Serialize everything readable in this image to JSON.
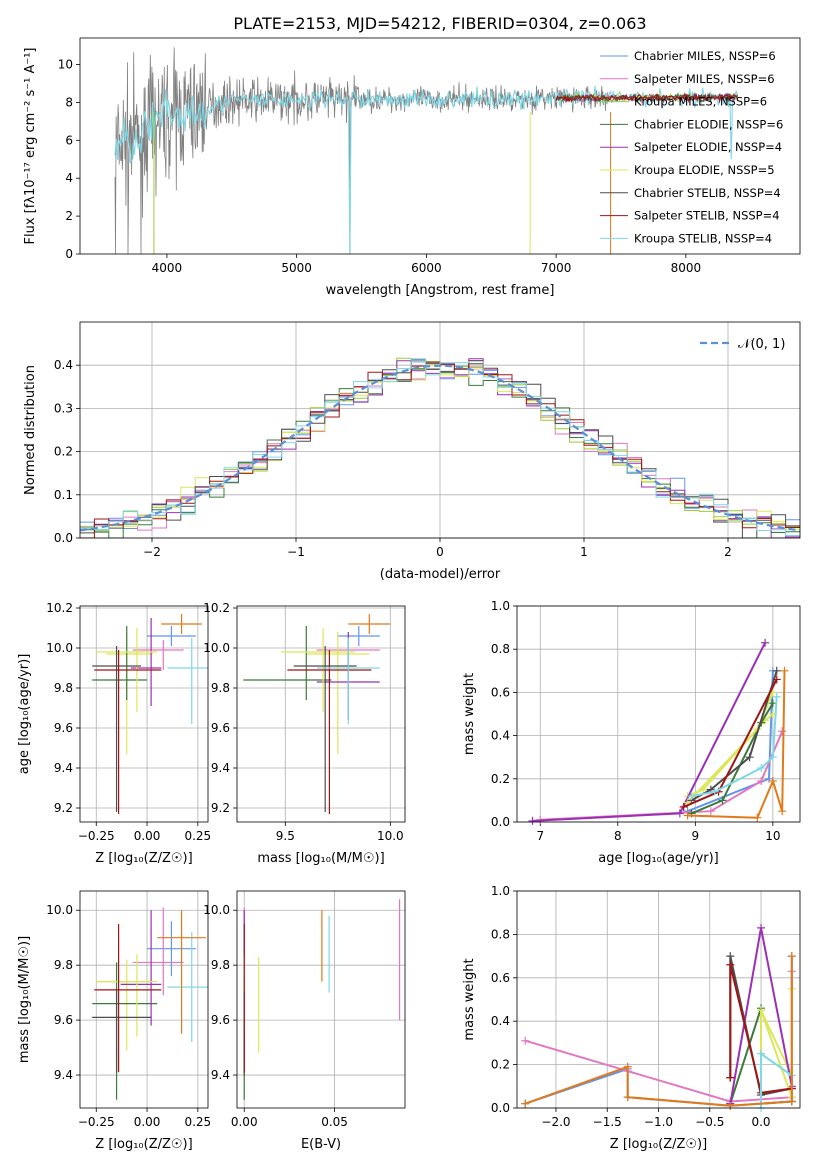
{
  "title": "PLATE=2153, MJD=54212, FIBERID=0304, z=0.063",
  "colors": [
    "#6495ed",
    "#e377c2",
    "#9acd32",
    "#3b7a3b",
    "#9b30b4",
    "#dde65a",
    "#4d4d4d",
    "#a01515",
    "#7fd8e6"
  ],
  "labels": {
    "flux_ylabel": "Flux [fλ10⁻¹⁷ erg cm⁻² s⁻¹ A⁻¹]",
    "wavelength": "wavelength [Angstrom, rest frame]",
    "normed": "Normed distribution",
    "resid": "(data-model)/error",
    "norm_legend": "𝒩(0, 1)",
    "age_label": "age  [log₁₀(age/yr)]",
    "z_label": "Z [log₁₀(Z/Z☉)]",
    "mass_label": "mass [log₁₀(M/M☉)]",
    "mw_label": "mass weight",
    "ebv_label": "E(B-V)"
  },
  "chart_data": [
    {
      "type": "line",
      "title": "PLATE=2153, MJD=54212, FIBERID=0304, z=0.063",
      "xlabel": "wavelength [Angstrom, rest frame]",
      "ylabel": "Flux [fλ10⁻¹⁷ erg cm⁻² s⁻¹ A⁻¹]",
      "xlim": [
        3330,
        8880
      ],
      "ylim": [
        0,
        11.4
      ],
      "xticks": [
        "4000",
        "5000",
        "6000",
        "7000",
        "8000"
      ],
      "yticks": [
        "0",
        "2",
        "4",
        "6",
        "8",
        "10"
      ],
      "legend": "top-right",
      "series": [
        {
          "name": "Chabrier MILES, N_SSP=6"
        },
        {
          "name": "Salpeter MILES, N_SSP=6"
        },
        {
          "name": "Kroupa MILES, N_SSP=6"
        },
        {
          "name": "Chabrier ELODIE, N_SSP=6"
        },
        {
          "name": "Salpeter ELODIE, N_SSP=4"
        },
        {
          "name": "Kroupa ELODIE, N_SSP=5"
        },
        {
          "name": "Chabrier STELIB, N_SSP=4"
        },
        {
          "name": "Salpeter STELIB, N_SSP=4"
        },
        {
          "name": "Kroupa STELIB, N_SSP=4"
        }
      ]
    },
    {
      "type": "area",
      "xlabel": "(data-model)/error",
      "ylabel": "Normed distribution",
      "xlim": [
        -2.5,
        2.5
      ],
      "ylim": [
        0,
        0.5
      ],
      "xticks": [
        "−2",
        "−1",
        "0",
        "1",
        "2"
      ],
      "yticks": [
        "0.0",
        "0.1",
        "0.2",
        "0.3",
        "0.4"
      ],
      "grid": true,
      "legend": "top-right"
    },
    {
      "type": "scatter",
      "xlabel": "Z [log₁₀(Z/Z☉)]",
      "ylabel": "age  [log₁₀(age/yr)]",
      "xlim": [
        -0.33,
        0.3
      ],
      "ylim": [
        9.13,
        10.21
      ],
      "xticks": [
        "−0.25",
        "0.00",
        "0.25"
      ],
      "yticks": [
        "9.2",
        "9.4",
        "9.6",
        "9.8",
        "10.0",
        "10.2"
      ],
      "points": [
        {
          "x": 0.12,
          "y": 10.06,
          "xerr": [
            0.12,
            0.12
          ],
          "yerr": [
            0.05,
            0.05
          ]
        },
        {
          "x": 0.08,
          "y": 9.99,
          "xerr": [
            0.15,
            0.1
          ],
          "yerr": [
            0.1,
            0.05
          ]
        },
        {
          "x": -0.1,
          "y": 9.97,
          "xerr": [
            0.1,
            0.13
          ],
          "yerr": [
            0.5,
            0.11
          ]
        },
        {
          "x": -0.1,
          "y": 9.84,
          "xerr": [
            0.17,
            0.1
          ],
          "yerr": [
            0.1,
            0.27
          ]
        },
        {
          "x": 0.02,
          "y": 9.9,
          "xerr": [
            0.1,
            0.05
          ],
          "yerr": [
            0.19,
            0.25
          ]
        },
        {
          "x": -0.05,
          "y": 9.98,
          "xerr": [
            0.2,
            0.1
          ],
          "yerr": [
            0.3,
            0.12
          ]
        },
        {
          "x": -0.15,
          "y": 9.91,
          "xerr": [
            0.12,
            0.12
          ],
          "yerr": [
            0.73,
            0.1
          ]
        },
        {
          "x": -0.14,
          "y": 9.89,
          "xerr": [
            0.12,
            0.21
          ],
          "yerr": [
            0.72,
            0.1
          ]
        },
        {
          "x": 0.22,
          "y": 9.9,
          "xerr": [
            0.12,
            0.08
          ],
          "yerr": [
            0.28,
            0.15
          ]
        },
        {
          "x": 0.17,
          "y": 10.12,
          "xerr": [
            0.1,
            0.1
          ],
          "yerr": [
            0.05,
            0.05
          ]
        }
      ]
    },
    {
      "type": "scatter",
      "xlabel": "mass [log₁₀(M/M☉)]",
      "ylabel": "",
      "xlim": [
        9.27,
        10.07
      ],
      "ylim": [
        9.13,
        10.21
      ],
      "xticks": [
        "9.5",
        "10.0"
      ],
      "yticks": [
        "9.2",
        "9.4",
        "9.6",
        "9.8",
        "10.0",
        "10.2"
      ],
      "points": [
        {
          "x": 9.85,
          "y": 10.06,
          "xerr": [
            0.1,
            0.1
          ],
          "yerr": [
            0.05,
            0.05
          ]
        },
        {
          "x": 9.8,
          "y": 9.99,
          "xerr": [
            0.15,
            0.15
          ],
          "yerr": [
            0.1,
            0.05
          ]
        },
        {
          "x": 9.75,
          "y": 9.97,
          "xerr": [
            0.15,
            0.15
          ],
          "yerr": [
            0.5,
            0.11
          ]
        },
        {
          "x": 9.6,
          "y": 9.84,
          "xerr": [
            0.3,
            0.12
          ],
          "yerr": [
            0.1,
            0.27
          ]
        },
        {
          "x": 9.8,
          "y": 9.83,
          "xerr": [
            0.15,
            0.15
          ],
          "yerr": [
            0.19,
            0.25
          ]
        },
        {
          "x": 9.68,
          "y": 9.98,
          "xerr": [
            0.2,
            0.15
          ],
          "yerr": [
            0.3,
            0.12
          ]
        },
        {
          "x": 9.69,
          "y": 9.91,
          "xerr": [
            0.15,
            0.15
          ],
          "yerr": [
            0.73,
            0.1
          ]
        },
        {
          "x": 9.71,
          "y": 9.89,
          "xerr": [
            0.2,
            0.2
          ],
          "yerr": [
            0.72,
            0.1
          ]
        },
        {
          "x": 9.8,
          "y": 9.9,
          "xerr": [
            0.15,
            0.15
          ],
          "yerr": [
            0.28,
            0.15
          ]
        },
        {
          "x": 9.9,
          "y": 10.12,
          "xerr": [
            0.1,
            0.1
          ],
          "yerr": [
            0.05,
            0.05
          ]
        }
      ]
    },
    {
      "type": "line",
      "xlabel": "age  [log₁₀(age/yr)]",
      "ylabel": "mass weight",
      "xlim": [
        6.7,
        10.35
      ],
      "ylim": [
        0,
        1
      ],
      "xticks": [
        "7",
        "8",
        "9",
        "10"
      ],
      "yticks": [
        "0.0",
        "0.2",
        "0.4",
        "0.6",
        "0.8",
        "1.0"
      ],
      "grid": true,
      "series": [
        {
          "x": [
            8.9,
            9.95,
            10.0
          ],
          "y": [
            0.05,
            0.2,
            0.7
          ]
        },
        {
          "x": [
            7.0,
            9.2,
            9.85,
            10.12
          ],
          "y": [
            0.01,
            0.05,
            0.19,
            0.42
          ]
        },
        {
          "x": [
            8.9,
            9.1,
            9.9,
            10.0
          ],
          "y": [
            0.12,
            0.15,
            0.47,
            0.5
          ]
        },
        {
          "x": [
            8.95,
            9.35,
            9.85,
            10.0
          ],
          "y": [
            0.04,
            0.1,
            0.46,
            0.55
          ]
        },
        {
          "x": [
            6.9,
            8.8,
            9.9
          ],
          "y": [
            0.005,
            0.04,
            0.83
          ]
        },
        {
          "x": [
            8.9,
            9.8,
            10.0
          ],
          "y": [
            0.09,
            0.43,
            0.6
          ]
        },
        {
          "x": [
            8.95,
            9.2,
            9.7,
            10.05
          ],
          "y": [
            0.1,
            0.15,
            0.3,
            0.7
          ]
        },
        {
          "x": [
            8.85,
            9.3,
            10.05
          ],
          "y": [
            0.07,
            0.14,
            0.66
          ]
        },
        {
          "x": [
            8.95,
            9.25,
            9.85,
            10.0,
            10.05
          ],
          "y": [
            0.12,
            0.14,
            0.25,
            0.3,
            0.58
          ]
        },
        {
          "x": [
            8.9,
            9.8,
            10.0,
            10.12,
            10.15
          ],
          "y": [
            0.03,
            0.02,
            0.19,
            0.05,
            0.7
          ]
        }
      ]
    },
    {
      "type": "scatter",
      "xlabel": "Z [log₁₀(Z/Z☉)]",
      "ylabel": "mass [log₁₀(M/M☉)]",
      "xlim": [
        -0.33,
        0.3
      ],
      "ylim": [
        9.28,
        10.07
      ],
      "xticks": [
        "−0.25",
        "0.00",
        "0.25"
      ],
      "yticks": [
        "9.4",
        "9.6",
        "9.8",
        "10.0"
      ],
      "points": [
        {
          "x": 0.12,
          "y": 9.86,
          "xerr": [
            0.12,
            0.12
          ],
          "yerr": [
            0.1,
            0.1
          ]
        },
        {
          "x": 0.08,
          "y": 9.81,
          "xerr": [
            0.15,
            0.1
          ],
          "yerr": [
            0.12,
            0.2
          ]
        },
        {
          "x": -0.1,
          "y": 9.74,
          "xerr": [
            0.15,
            0.13
          ],
          "yerr": [
            0.25,
            0.08
          ]
        },
        {
          "x": -0.15,
          "y": 9.66,
          "xerr": [
            0.12,
            0.2
          ],
          "yerr": [
            0.35,
            0.15
          ]
        },
        {
          "x": 0.02,
          "y": 9.73,
          "xerr": [
            0.15,
            0.05
          ],
          "yerr": [
            0.15,
            0.27
          ]
        },
        {
          "x": -0.05,
          "y": 9.74,
          "xerr": [
            0.2,
            0.1
          ],
          "yerr": [
            0.2,
            0.1
          ]
        },
        {
          "x": -0.15,
          "y": 9.61,
          "xerr": [
            0.12,
            0.17
          ],
          "yerr": [
            0.2,
            0.1
          ]
        },
        {
          "x": -0.14,
          "y": 9.71,
          "xerr": [
            0.12,
            0.21
          ],
          "yerr": [
            0.3,
            0.24
          ]
        },
        {
          "x": 0.22,
          "y": 9.72,
          "xerr": [
            0.12,
            0.08
          ],
          "yerr": [
            0.2,
            0.2
          ]
        },
        {
          "x": 0.17,
          "y": 9.9,
          "xerr": [
            0.12,
            0.12
          ],
          "yerr": [
            0.35,
            0.1
          ]
        }
      ]
    },
    {
      "type": "scatter",
      "xlabel": "E(B-V)",
      "ylabel": "",
      "xlim": [
        -0.004,
        0.089
      ],
      "ylim": [
        9.28,
        10.07
      ],
      "xticks": [
        "0.00",
        "0.05"
      ],
      "yticks": [
        "9.4",
        "9.6",
        "9.8",
        "10.0"
      ],
      "points": [
        {
          "x": 0.0,
          "y": 9.86,
          "yerr": [
            0.1,
            0.1
          ]
        },
        {
          "x": 0.0,
          "y": 9.81,
          "yerr": [
            0.12,
            0.2
          ]
        },
        {
          "x": 0.008,
          "y": 9.65,
          "yerr": [
            0.17,
            0.18
          ]
        },
        {
          "x": 0.0,
          "y": 9.6,
          "yerr": [
            0.29,
            0.15
          ]
        },
        {
          "x": 0.0,
          "y": 9.73,
          "yerr": [
            0.15,
            0.27
          ]
        },
        {
          "x": 0.0,
          "y": 9.74,
          "yerr": [
            0.2,
            0.1
          ]
        },
        {
          "x": 0.0,
          "y": 9.6,
          "yerr": [
            0.2,
            0.1
          ]
        },
        {
          "x": 0.0,
          "y": 9.71,
          "yerr": [
            0.3,
            0.24
          ]
        },
        {
          "x": 0.047,
          "y": 9.85,
          "yerr": [
            0.15,
            0.13
          ]
        },
        {
          "x": 0.043,
          "y": 9.86,
          "yerr": [
            0.12,
            0.14
          ]
        },
        {
          "x": 0.086,
          "y": 9.82,
          "yerr": [
            0.22,
            0.22
          ]
        }
      ]
    },
    {
      "type": "line",
      "xlabel": "Z [log₁₀(Z/Z☉)]",
      "ylabel": "mass weight",
      "xlim": [
        -2.38,
        0.38
      ],
      "ylim": [
        0,
        1
      ],
      "xticks": [
        "−2.0",
        "−1.5",
        "−1.0",
        "−0.5",
        "0.0"
      ],
      "yticks": [
        "0.0",
        "0.2",
        "0.4",
        "0.6",
        "0.8",
        "1.0"
      ],
      "grid": true,
      "series": [
        {
          "x": [
            -2.3,
            -1.3,
            -1.3,
            -0.3,
            0.3,
            0.3
          ],
          "y": [
            0.02,
            0.18,
            0.05,
            0.01,
            0.03,
            0.7
          ]
        },
        {
          "x": [
            -2.3,
            -1.3,
            -0.3,
            0.3,
            0.3
          ],
          "y": [
            0.31,
            0.17,
            0.03,
            0.05,
            0.63
          ]
        },
        {
          "x": [
            0.0,
            0.0,
            0.3,
            0.3
          ],
          "y": [
            0.02,
            0.45,
            0.15,
            0.55
          ]
        },
        {
          "x": [
            -0.3,
            0.0,
            0.0,
            0.3
          ],
          "y": [
            0.02,
            0.46,
            0.02,
            0.03
          ]
        },
        {
          "x": [
            -0.3,
            0.0,
            0.3
          ],
          "y": [
            0.02,
            0.83,
            0.1
          ]
        },
        {
          "x": [
            0.0,
            0.0,
            0.3
          ],
          "y": [
            0.02,
            0.45,
            0.05
          ]
        },
        {
          "x": [
            -0.3,
            -0.3,
            0.0,
            0.3
          ],
          "y": [
            0.14,
            0.7,
            0.06,
            0.09
          ]
        },
        {
          "x": [
            -0.3,
            -0.3,
            0.0,
            0.3
          ],
          "y": [
            0.14,
            0.66,
            0.07,
            0.09
          ]
        },
        {
          "x": [
            0.0,
            0.0,
            0.3
          ],
          "y": [
            0.0,
            0.25,
            0.15
          ]
        },
        {
          "x": [
            -2.3,
            -1.3,
            -1.3,
            -0.3,
            0.3,
            0.3
          ],
          "y": [
            0.02,
            0.19,
            0.05,
            0.01,
            0.03,
            0.7
          ]
        }
      ]
    }
  ]
}
